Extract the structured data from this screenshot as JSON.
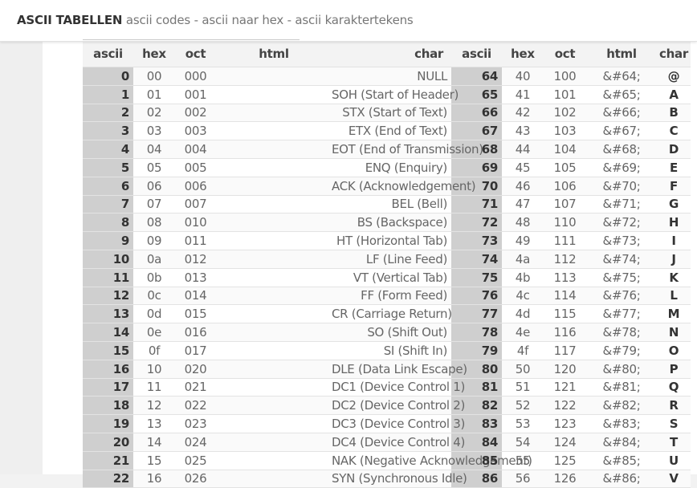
{
  "header": {
    "brand": "ASCII TABELLEN",
    "tagline": " ascii codes - ascii naar hex - ascii karaktertekens"
  },
  "table": {
    "columns": [
      "ascii",
      "hex",
      "oct",
      "html",
      "char",
      "ascii",
      "hex",
      "oct",
      "html",
      "char"
    ],
    "rows": [
      {
        "a": "0",
        "h": "00",
        "o": "000",
        "name": "NULL",
        "a2": "64",
        "h2": "40",
        "o2": "100",
        "html2": "&#64;",
        "c2": "@"
      },
      {
        "a": "1",
        "h": "01",
        "o": "001",
        "name": "SOH (Start of Header)",
        "a2": "65",
        "h2": "41",
        "o2": "101",
        "html2": "&#65;",
        "c2": "A"
      },
      {
        "a": "2",
        "h": "02",
        "o": "002",
        "name": "STX (Start of Text)",
        "a2": "66",
        "h2": "42",
        "o2": "102",
        "html2": "&#66;",
        "c2": "B"
      },
      {
        "a": "3",
        "h": "03",
        "o": "003",
        "name": "ETX (End of Text)",
        "a2": "67",
        "h2": "43",
        "o2": "103",
        "html2": "&#67;",
        "c2": "C"
      },
      {
        "a": "4",
        "h": "04",
        "o": "004",
        "name": "EOT (End of Transmission)",
        "a2": "68",
        "h2": "44",
        "o2": "104",
        "html2": "&#68;",
        "c2": "D"
      },
      {
        "a": "5",
        "h": "05",
        "o": "005",
        "name": "ENQ (Enquiry)",
        "a2": "69",
        "h2": "45",
        "o2": "105",
        "html2": "&#69;",
        "c2": "E"
      },
      {
        "a": "6",
        "h": "06",
        "o": "006",
        "name": "ACK (Acknowledgement)",
        "a2": "70",
        "h2": "46",
        "o2": "106",
        "html2": "&#70;",
        "c2": "F"
      },
      {
        "a": "7",
        "h": "07",
        "o": "007",
        "name": "BEL (Bell)",
        "a2": "71",
        "h2": "47",
        "o2": "107",
        "html2": "&#71;",
        "c2": "G"
      },
      {
        "a": "8",
        "h": "08",
        "o": "010",
        "name": "BS (Backspace)",
        "a2": "72",
        "h2": "48",
        "o2": "110",
        "html2": "&#72;",
        "c2": "H"
      },
      {
        "a": "9",
        "h": "09",
        "o": "011",
        "name": "HT (Horizontal Tab)",
        "a2": "73",
        "h2": "49",
        "o2": "111",
        "html2": "&#73;",
        "c2": "I"
      },
      {
        "a": "10",
        "h": "0a",
        "o": "012",
        "name": "LF (Line Feed)",
        "a2": "74",
        "h2": "4a",
        "o2": "112",
        "html2": "&#74;",
        "c2": "J"
      },
      {
        "a": "11",
        "h": "0b",
        "o": "013",
        "name": "VT (Vertical Tab)",
        "a2": "75",
        "h2": "4b",
        "o2": "113",
        "html2": "&#75;",
        "c2": "K"
      },
      {
        "a": "12",
        "h": "0c",
        "o": "014",
        "name": "FF (Form Feed)",
        "a2": "76",
        "h2": "4c",
        "o2": "114",
        "html2": "&#76;",
        "c2": "L"
      },
      {
        "a": "13",
        "h": "0d",
        "o": "015",
        "name": "CR (Carriage Return)",
        "a2": "77",
        "h2": "4d",
        "o2": "115",
        "html2": "&#77;",
        "c2": "M"
      },
      {
        "a": "14",
        "h": "0e",
        "o": "016",
        "name": "SO (Shift Out)",
        "a2": "78",
        "h2": "4e",
        "o2": "116",
        "html2": "&#78;",
        "c2": "N"
      },
      {
        "a": "15",
        "h": "0f",
        "o": "017",
        "name": "SI (Shift In)",
        "a2": "79",
        "h2": "4f",
        "o2": "117",
        "html2": "&#79;",
        "c2": "O"
      },
      {
        "a": "16",
        "h": "10",
        "o": "020",
        "name": "DLE (Data Link Escape)",
        "a2": "80",
        "h2": "50",
        "o2": "120",
        "html2": "&#80;",
        "c2": "P"
      },
      {
        "a": "17",
        "h": "11",
        "o": "021",
        "name": "DC1 (Device Control 1)",
        "a2": "81",
        "h2": "51",
        "o2": "121",
        "html2": "&#81;",
        "c2": "Q"
      },
      {
        "a": "18",
        "h": "12",
        "o": "022",
        "name": "DC2 (Device Control 2)",
        "a2": "82",
        "h2": "52",
        "o2": "122",
        "html2": "&#82;",
        "c2": "R"
      },
      {
        "a": "19",
        "h": "13",
        "o": "023",
        "name": "DC3 (Device Control 3)",
        "a2": "83",
        "h2": "53",
        "o2": "123",
        "html2": "&#83;",
        "c2": "S"
      },
      {
        "a": "20",
        "h": "14",
        "o": "024",
        "name": "DC4 (Device Control 4)",
        "a2": "84",
        "h2": "54",
        "o2": "124",
        "html2": "&#84;",
        "c2": "T"
      },
      {
        "a": "21",
        "h": "15",
        "o": "025",
        "name": "NAK (Negative Acknowledgement)",
        "a2": "85",
        "h2": "55",
        "o2": "125",
        "html2": "&#85;",
        "c2": "U"
      },
      {
        "a": "22",
        "h": "16",
        "o": "026",
        "name": "SYN (Synchronous Idle)",
        "a2": "86",
        "h2": "56",
        "o2": "126",
        "html2": "&#86;",
        "c2": "V"
      }
    ]
  },
  "colors": {
    "header_bg": "#ffffff",
    "page_bg": "#f2f2f2",
    "decimal_cell_bg": "#cfcfcf"
  }
}
